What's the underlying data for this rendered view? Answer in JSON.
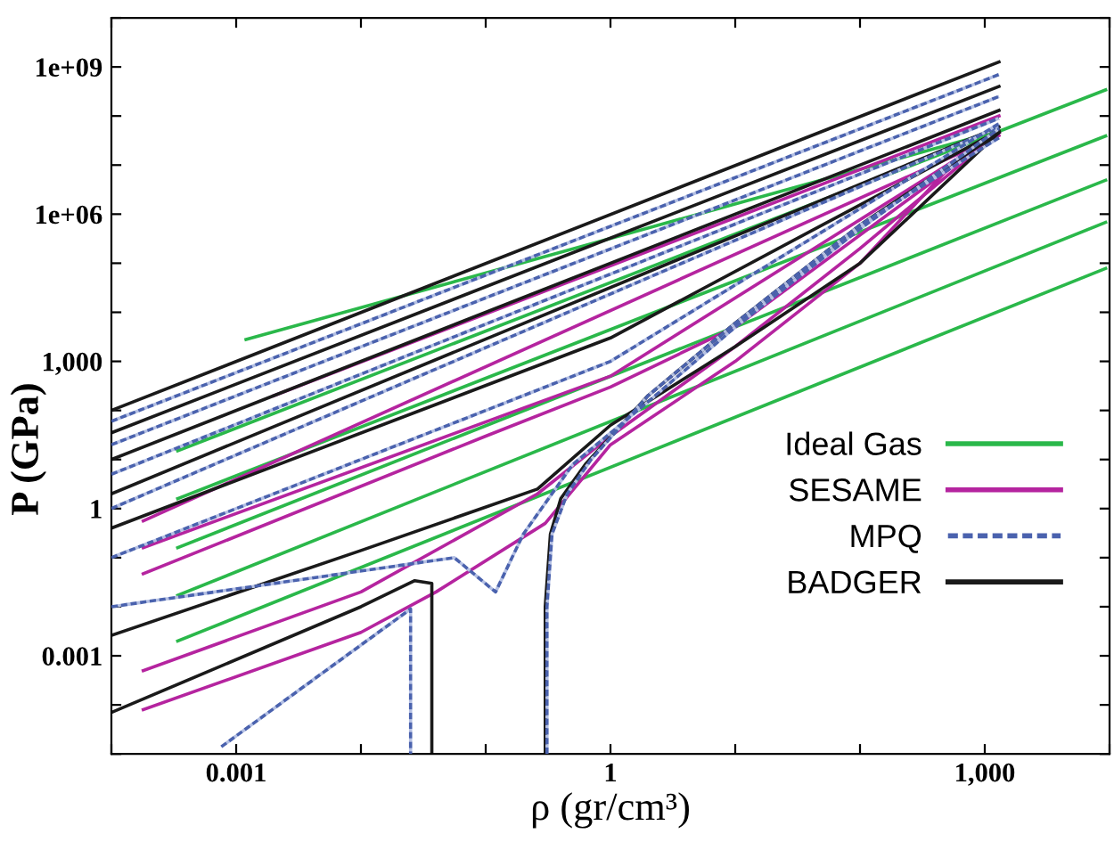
{
  "chart_data": {
    "type": "line",
    "xlabel": "ρ (gr/cm³)",
    "ylabel": "P (GPa)",
    "log": "xy",
    "grid": false,
    "legend": "bottom right",
    "marker": "none",
    "xlim": [
      0.0001,
      10000
    ],
    "ylim": [
      1e-05,
      10000000000
    ],
    "xticks": [
      {
        "value": 0.0001,
        "label": null
      },
      {
        "value": 0.001,
        "label": "0.001"
      },
      {
        "value": 0.01,
        "label": null
      },
      {
        "value": 0.1,
        "label": null
      },
      1,
      {
        "value": 10,
        "label": null
      },
      {
        "value": 100,
        "label": null
      },
      {
        "value": 1000,
        "label": "1,000"
      },
      {
        "value": 10000,
        "label": null
      }
    ],
    "yticks": [
      {
        "value": 1e-05,
        "label": null
      },
      {
        "value": 0.0001,
        "label": null
      },
      {
        "value": 0.001,
        "label": "0.001"
      },
      {
        "value": 0.01,
        "label": null
      },
      {
        "value": 0.1,
        "label": null
      },
      1,
      {
        "value": 10,
        "label": null
      },
      {
        "value": 100,
        "label": null
      },
      {
        "value": 1000,
        "label": "1,000"
      },
      {
        "value": 10000,
        "label": null
      },
      {
        "value": 100000,
        "label": null
      },
      {
        "value": 1000000,
        "label": "1e+06"
      },
      {
        "value": 10000000,
        "label": null
      },
      {
        "value": 100000000,
        "label": null
      },
      {
        "value": 1000000000,
        "label": "1e+09"
      },
      {
        "value": 10000000000,
        "label": null
      }
    ],
    "series": [
      {
        "name": "Ideal Gas",
        "color": "#2ab84a",
        "line_style": "solid",
        "x": [
          0.00034,
          9300
        ],
        "values": [
          0.002,
          78000
        ]
      },
      {
        "color": "#2ab84a",
        "line_style": "solid",
        "x": [
          0.00034,
          9300
        ],
        "values": [
          0.017,
          680000
        ]
      },
      {
        "color": "#2ab84a",
        "line_style": "solid",
        "x": [
          0.00034,
          9300
        ],
        "values": [
          0.16,
          4900000
        ]
      },
      {
        "color": "#2ab84a",
        "line_style": "solid",
        "x": [
          0.00034,
          9300
        ],
        "values": [
          1.6,
          39000000
        ]
      },
      {
        "color": "#2ab84a",
        "line_style": "solid",
        "x": [
          0.00034,
          9300
        ],
        "values": [
          15,
          340000000
        ]
      },
      {
        "color": "#2ab84a",
        "line_style": "solid",
        "x": [
          0.0012,
          1300
        ],
        "values": [
          2800,
          50000000
        ]
      },
      {
        "name": "SESAME",
        "color": "#b5249f",
        "line_style": "solid",
        "x": [
          0.00018,
          1300
        ],
        "values": [
          0.56,
          40000000
        ]
      },
      {
        "color": "#b5249f",
        "line_style": "solid",
        "x": [
          0.00018,
          1,
          1300
        ],
        "values": [
          0.16,
          500,
          46000000
        ]
      },
      {
        "color": "#b5249f",
        "line_style": "solid",
        "x": [
          0.00018,
          0.1,
          1,
          10,
          1300
        ],
        "values": [
          0.047,
          30,
          300,
          5000,
          46000000
        ]
      },
      {
        "color": "#b5249f",
        "line_style": "solid",
        "x": [
          0.00018,
          0.01,
          0.26,
          1,
          10,
          100,
          1300
        ],
        "values": [
          0.0005,
          0.02,
          2,
          30,
          2000,
          200000,
          46000000
        ]
      },
      {
        "color": "#b5249f",
        "line_style": "solid",
        "x": [
          0.00018,
          0.01,
          0.04,
          0.3,
          1,
          10,
          100,
          700
        ],
        "values": [
          8e-05,
          0.003,
          0.02,
          0.5,
          20,
          1000,
          100000,
          20000000
        ]
      },
      {
        "color": "#b5249f",
        "line_style": "solid",
        "x": [
          0.002,
          1300
        ],
        "values": [
          200,
          100000000
        ]
      },
      {
        "name": "MPQ",
        "color": "#4a62ae",
        "line_style": "dashed",
        "x": [
          0.0001,
          1300
        ],
        "values": [
          60,
          700000000
        ]
      },
      {
        "color": "#4a62ae",
        "line_style": "dashed",
        "x": [
          0.0001,
          1300
        ],
        "values": [
          20,
          250000000
        ]
      },
      {
        "color": "#4a62ae",
        "line_style": "dashed",
        "x": [
          0.0001,
          1300
        ],
        "values": [
          5,
          90000000
        ]
      },
      {
        "color": "#4a62ae",
        "line_style": "dashed",
        "x": [
          0.0001,
          1300
        ],
        "values": [
          1,
          60000000
        ]
      },
      {
        "color": "#4a62ae",
        "line_style": "dashed",
        "x": [
          0.0001,
          1,
          1300
        ],
        "values": [
          0.1,
          1000,
          70000000
        ]
      },
      {
        "color": "#4a62ae",
        "line_style": "dashed",
        "x": [
          0.0001,
          0.056,
          0.12,
          0.2,
          0.5,
          2,
          10,
          100,
          1300
        ],
        "values": [
          0.01,
          0.1,
          0.02,
          0.3,
          8,
          150,
          5000,
          500000,
          55000000
        ]
      },
      {
        "color": "#4a62ae",
        "line_style": "dashed",
        "x": [
          0.00076,
          0.005,
          0.025,
          0.025
        ],
        "values": [
          1.4e-05,
          0.00046,
          0.009,
          1e-05
        ]
      },
      {
        "color": "#4a62ae",
        "line_style": "dashed",
        "x": [
          0.31,
          0.31,
          0.34,
          0.45,
          0.7,
          2,
          10,
          100,
          1300
        ],
        "values": [
          1e-05,
          0.01,
          0.3,
          2,
          10,
          200,
          6000,
          600000,
          36000000
        ]
      },
      {
        "name": "BADGER",
        "color": "#1a1a1a",
        "line_style": "solid",
        "x": [
          0.0001,
          1300
        ],
        "values": [
          100,
          1260000000
        ]
      },
      {
        "color": "#1a1a1a",
        "line_style": "solid",
        "x": [
          0.0001,
          1300
        ],
        "values": [
          35,
          400000000
        ]
      },
      {
        "color": "#1a1a1a",
        "line_style": "solid",
        "x": [
          0.0001,
          1300
        ],
        "values": [
          10,
          130000000
        ]
      },
      {
        "color": "#1a1a1a",
        "line_style": "solid",
        "x": [
          0.0001,
          1300
        ],
        "values": [
          2,
          60000000
        ]
      },
      {
        "color": "#1a1a1a",
        "line_style": "solid",
        "x": [
          0.0001,
          1,
          1300
        ],
        "values": [
          0.4,
          3000,
          50000000
        ]
      },
      {
        "color": "#1a1a1a",
        "line_style": "solid",
        "x": [
          0.0001,
          0.01,
          0.26,
          1,
          10,
          100,
          1300
        ],
        "values": [
          0.0026,
          0.14,
          2.5,
          50,
          2000,
          100000,
          46000000
        ]
      },
      {
        "color": "#1a1a1a",
        "line_style": "solid",
        "x": [
          0.0001,
          0.01,
          0.027,
          0.037,
          0.037
        ],
        "values": [
          7e-05,
          0.01,
          0.034,
          0.03,
          1e-05
        ]
      },
      {
        "color": "#1a1a1a",
        "line_style": "solid",
        "x": [
          0.3,
          0.3,
          0.33,
          0.4,
          0.63,
          2,
          10,
          100,
          1300
        ],
        "values": [
          1e-05,
          0.01,
          0.3,
          1.6,
          8,
          200,
          6000,
          600000,
          46000000
        ]
      }
    ]
  }
}
